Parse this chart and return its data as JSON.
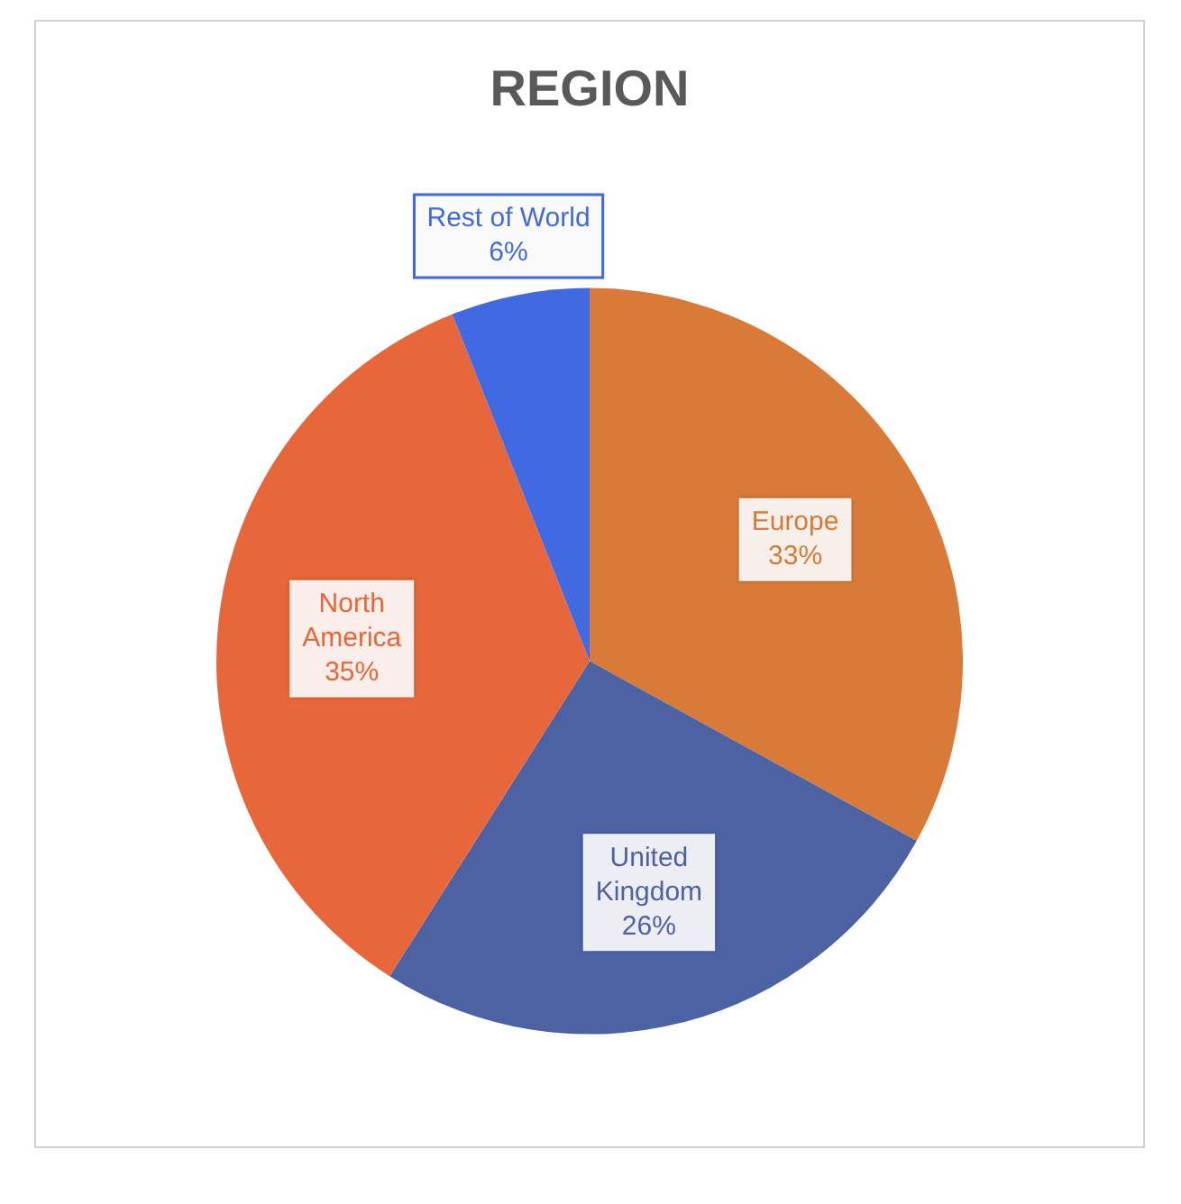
{
  "chart_data": {
    "type": "pie",
    "title": "REGION",
    "categories": [
      "Europe",
      "United Kingdom",
      "North America",
      "Rest of World"
    ],
    "values": [
      33,
      26,
      35,
      6
    ],
    "colors": [
      "#d97a38",
      "#4d62a3",
      "#e8673a",
      "#4169e1"
    ],
    "value_labels": [
      "33%",
      "26%",
      "35%",
      "6%"
    ]
  }
}
